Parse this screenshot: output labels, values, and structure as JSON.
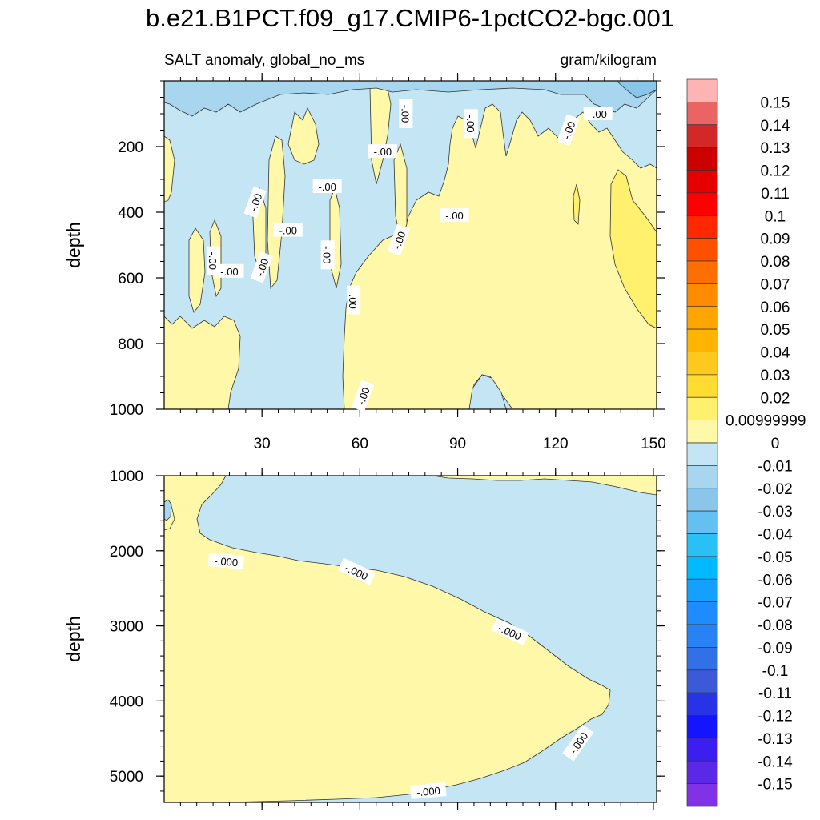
{
  "title": "b.e21.B1PCT.f09_g17.CMIP6-1pctCO2-bgc.001",
  "subtitle_left": "SALT anomaly, global_no_ms",
  "subtitle_right": "gram/kilogram",
  "colors": {
    "positive_small": "#fff8a8",
    "positive_002": "#fff06e",
    "negative_small": "#c4e6f4",
    "negative_002": "#a8d6ef",
    "negative_003": "#8ac6ea",
    "contour_line": "#333333"
  },
  "chart_data": [
    {
      "type": "heatmap",
      "panel": "upper",
      "variable": "SALT anomaly, global_no_ms",
      "units": "gram/kilogram",
      "xlabel": "",
      "ylabel": "depth",
      "xlim": [
        0,
        151
      ],
      "ylim": [
        1000,
        0
      ],
      "x_ticks": [
        30,
        60,
        90,
        120,
        150
      ],
      "y_ticks": [
        200,
        400,
        600,
        800,
        1000
      ],
      "contour_label": "-.00",
      "contour_label_positions": [
        {
          "x": 20,
          "y": 580
        },
        {
          "x": 15,
          "y": 548
        },
        {
          "x": 30,
          "y": 568
        },
        {
          "x": 38,
          "y": 455
        },
        {
          "x": 28,
          "y": 370
        },
        {
          "x": 50,
          "y": 530
        },
        {
          "x": 50,
          "y": 322
        },
        {
          "x": 58,
          "y": 667
        },
        {
          "x": 61,
          "y": 960
        },
        {
          "x": 67,
          "y": 215
        },
        {
          "x": 72,
          "y": 485
        },
        {
          "x": 74,
          "y": 100
        },
        {
          "x": 89,
          "y": 410
        },
        {
          "x": 94,
          "y": 130
        },
        {
          "x": 124,
          "y": 150
        },
        {
          "x": 133,
          "y": 100
        }
      ]
    },
    {
      "type": "heatmap",
      "panel": "lower",
      "variable": "SALT anomaly, global_no_ms",
      "units": "gram/kilogram",
      "xlabel": "",
      "ylabel": "depth",
      "xlim": [
        0,
        151
      ],
      "ylim": [
        5350,
        1000
      ],
      "x_ticks": [
        30,
        60,
        90,
        120,
        150
      ],
      "y_ticks": [
        1000,
        2000,
        3000,
        4000,
        5000
      ],
      "contour_label": "-.000",
      "contour_label_positions": [
        {
          "x": 19,
          "y": 2140
        },
        {
          "x": 59,
          "y": 2280
        },
        {
          "x": 106,
          "y": 3080
        },
        {
          "x": 127,
          "y": 4560
        },
        {
          "x": 81,
          "y": 5200
        }
      ]
    }
  ],
  "colorbar": {
    "labels": [
      "0.15",
      "0.14",
      "0.13",
      "0.12",
      "0.11",
      "0.1",
      "0.09",
      "0.08",
      "0.07",
      "0.06",
      "0.05",
      "0.04",
      "0.03",
      "0.02",
      "0.00999999",
      "0",
      "-0.01",
      "-0.02",
      "-0.03",
      "-0.04",
      "-0.05",
      "-0.06",
      "-0.07",
      "-0.08",
      "-0.09",
      "-0.1",
      "-0.11",
      "-0.12",
      "-0.13",
      "-0.14",
      "-0.15"
    ],
    "colors": [
      "#ffb4b4",
      "#eb6464",
      "#d22828",
      "#cd0000",
      "#e60000",
      "#ff0000",
      "#ff2800",
      "#ff5000",
      "#ff6e00",
      "#ff8c00",
      "#ffa500",
      "#ffb400",
      "#ffc81e",
      "#ffdc32",
      "#fff06e",
      "#fff8a8",
      "#c4e6f4",
      "#a8d6ef",
      "#8ac6ea",
      "#64c0f0",
      "#28c0f5",
      "#00b9ff",
      "#14a0ff",
      "#1e8cff",
      "#2882f5",
      "#3270e6",
      "#3c5ad7",
      "#2832e6",
      "#1414ff",
      "#3c1ef0",
      "#5a28e6",
      "#8232e6"
    ]
  }
}
